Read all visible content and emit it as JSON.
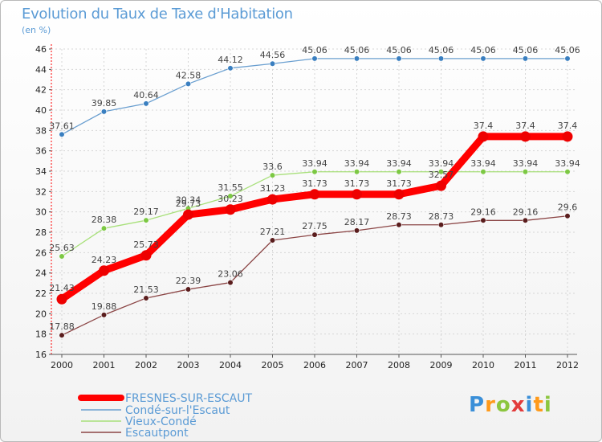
{
  "chart_data": {
    "type": "line",
    "title": "Evolution du Taux de Taxe d'Habitation",
    "subtitle": "(en %)",
    "x": [
      "2000",
      "2001",
      "2002",
      "2003",
      "2004",
      "2005",
      "2006",
      "2007",
      "2008",
      "2009",
      "2010",
      "2011",
      "2012"
    ],
    "ylim": [
      16,
      46
    ],
    "yticks": [
      16,
      18,
      20,
      22,
      24,
      26,
      28,
      30,
      32,
      34,
      36,
      38,
      40,
      42,
      44,
      46
    ],
    "grid": true,
    "legend_position": "bottom-left",
    "series": [
      {
        "name": "FRESNES-SUR-ESCAUT",
        "color": "#ff0000",
        "marker_color": "#ee0000",
        "emphasis": true,
        "values": [
          21.43,
          24.23,
          25.73,
          29.73,
          30.23,
          31.23,
          31.73,
          31.73,
          31.73,
          32.57,
          37.4,
          37.4,
          37.4
        ],
        "labels": [
          "21.43",
          "24.23",
          "25.73",
          "29.73",
          "30.23",
          "31.23",
          "31.73",
          "31.73",
          "31.73",
          "32.57",
          "37.4",
          "37.4",
          "37.4"
        ]
      },
      {
        "name": "Condé-sur-l'Escaut",
        "color": "#6a9fd0",
        "marker_color": "#3a7fc0",
        "emphasis": false,
        "values": [
          37.61,
          39.85,
          40.64,
          42.58,
          44.12,
          44.56,
          45.06,
          45.06,
          45.06,
          45.06,
          45.06,
          45.06,
          45.06
        ],
        "labels": [
          "37.61",
          "39.85",
          "40.64",
          "42.58",
          "44.12",
          "44.56",
          "45.06",
          "45.06",
          "45.06",
          "45.06",
          "45.06",
          "45.06",
          "45.06"
        ]
      },
      {
        "name": "Vieux-Condé",
        "color": "#a8e07a",
        "marker_color": "#7cc843",
        "emphasis": false,
        "values": [
          25.63,
          28.38,
          29.17,
          30.34,
          31.55,
          33.6,
          33.94,
          33.94,
          33.94,
          33.94,
          33.94,
          33.94,
          33.94
        ],
        "labels": [
          "25.63",
          "28.38",
          "29.17",
          "30.34",
          "31.55",
          "33.6",
          "33.94",
          "33.94",
          "33.94",
          "33.94",
          "33.94",
          "33.94",
          "33.94"
        ]
      },
      {
        "name": "Escautpont",
        "color": "#8b4545",
        "marker_color": "#5a1d1d",
        "emphasis": false,
        "values": [
          17.88,
          19.88,
          21.53,
          22.39,
          23.06,
          27.21,
          27.75,
          28.17,
          28.73,
          28.73,
          29.16,
          29.16,
          29.6
        ],
        "labels": [
          "17.88",
          "19.88",
          "21.53",
          "22.39",
          "23.06",
          "27.21",
          "27.75",
          "28.17",
          "28.73",
          "28.73",
          "29.16",
          "29.16",
          "29.6"
        ]
      }
    ]
  },
  "logo": {
    "text": "Proxiti",
    "letters": [
      "P",
      "r",
      "o",
      "x",
      "i",
      "t",
      "i"
    ],
    "colors": [
      "#3a8fd8",
      "#ff9a1a",
      "#8cc63f",
      "#e23b3b",
      "#3a8fd8",
      "#ff9a1a",
      "#8cc63f"
    ]
  }
}
